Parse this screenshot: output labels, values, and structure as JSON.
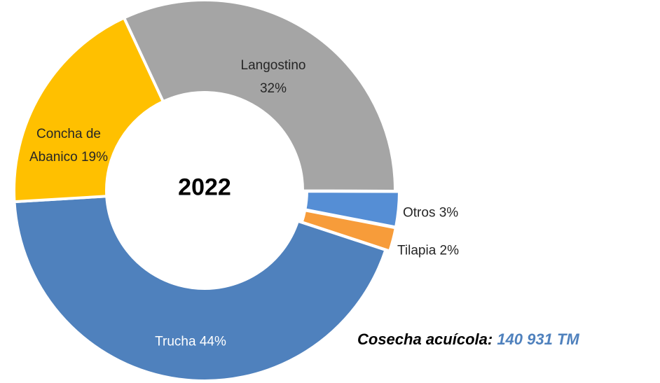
{
  "chart_data": {
    "type": "donut",
    "center_label": "2022",
    "categories": [
      "Langostino",
      "Otros",
      "Tilapia",
      "Trucha",
      "Concha de Abanico"
    ],
    "values": [
      32,
      3,
      2,
      44,
      19
    ],
    "value_labels": [
      "32%",
      "3%",
      "2%",
      "44%",
      "19%"
    ],
    "colors": [
      "#a5a5a5",
      "#558ed5",
      "#f79c3a",
      "#4f81bd",
      "#ffc000"
    ],
    "annotation": {
      "label": "Cosecha acuícola:",
      "value": "140 931  TM"
    }
  }
}
